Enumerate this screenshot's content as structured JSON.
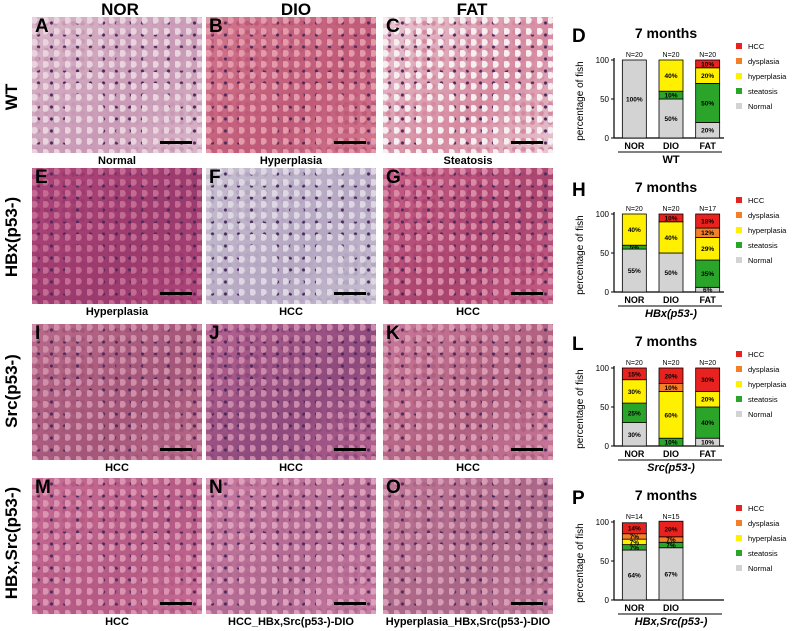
{
  "columns": [
    "NOR",
    "DIO",
    "FAT"
  ],
  "rows": [
    {
      "label": "WT"
    },
    {
      "label": "HBx(p53-)"
    },
    {
      "label": "Src(p53-)"
    },
    {
      "label": "HBx,Src(p53-)"
    }
  ],
  "panels": [
    {
      "letter": "A",
      "caption": "Normal"
    },
    {
      "letter": "B",
      "caption": "Hyperplasia"
    },
    {
      "letter": "C",
      "caption": "Steatosis"
    },
    {
      "letter": "E",
      "caption": "Hyperplasia"
    },
    {
      "letter": "F",
      "caption": "HCC"
    },
    {
      "letter": "G",
      "caption": "HCC"
    },
    {
      "letter": "I",
      "caption": "HCC"
    },
    {
      "letter": "J",
      "caption": "HCC"
    },
    {
      "letter": "K",
      "caption": "HCC"
    },
    {
      "letter": "M",
      "caption": "HCC"
    },
    {
      "letter": "N",
      "caption": "HCC_HBx,Src(p53-)-DIO"
    },
    {
      "letter": "O",
      "caption": "Hyperplasia_HBx,Src(p53-)-DIO"
    }
  ],
  "colors": {
    "HCC": "#e8221e",
    "dysplasia": "#f57f26",
    "hyperplasia": "#fff000",
    "steatosis": "#2aa52a",
    "Normal": "#d3d3d3"
  },
  "chart_data": [
    {
      "letter": "D",
      "type": "bar",
      "stacked": true,
      "title": "7 months",
      "ylabel": "percentage of fish",
      "xlabel": "WT",
      "xlabel_italic": false,
      "categories": [
        "NOR",
        "DIO",
        "FAT"
      ],
      "n_labels": [
        "N=20",
        "N=20",
        "N=20"
      ],
      "ylim": [
        0,
        100
      ],
      "yticks": [
        0,
        50,
        100
      ],
      "legend": [
        "HCC",
        "dysplasia",
        "hyperplasia",
        "steatosis",
        "Normal"
      ],
      "series": [
        {
          "name": "Normal",
          "values": [
            100,
            50,
            20
          ],
          "labels": [
            "100%",
            "50%",
            "20%"
          ]
        },
        {
          "name": "steatosis",
          "values": [
            0,
            10,
            50
          ],
          "labels": [
            "",
            "10%",
            "50%"
          ]
        },
        {
          "name": "hyperplasia",
          "values": [
            0,
            40,
            20
          ],
          "labels": [
            "",
            "40%",
            "20%"
          ]
        },
        {
          "name": "dysplasia",
          "values": [
            0,
            0,
            0
          ],
          "labels": [
            "",
            "",
            ""
          ]
        },
        {
          "name": "HCC",
          "values": [
            0,
            0,
            10
          ],
          "labels": [
            "",
            "",
            "10%"
          ]
        }
      ]
    },
    {
      "letter": "H",
      "type": "bar",
      "stacked": true,
      "title": "7 months",
      "ylabel": "percentage of fish",
      "xlabel": "HBx(p53-)",
      "xlabel_italic": true,
      "categories": [
        "NOR",
        "DIO",
        "FAT"
      ],
      "n_labels": [
        "N=20",
        "N=20",
        "N=17"
      ],
      "ylim": [
        0,
        100
      ],
      "yticks": [
        0,
        50,
        100
      ],
      "legend": [
        "HCC",
        "dysplasia",
        "hyperplasia",
        "steatosis",
        "Normal"
      ],
      "series": [
        {
          "name": "Normal",
          "values": [
            55,
            50,
            6
          ],
          "labels": [
            "55%",
            "50%",
            "6%"
          ]
        },
        {
          "name": "steatosis",
          "values": [
            5,
            0,
            35
          ],
          "labels": [
            "5%",
            "",
            "35%"
          ]
        },
        {
          "name": "hyperplasia",
          "values": [
            40,
            40,
            29
          ],
          "labels": [
            "40%",
            "40%",
            "29%"
          ]
        },
        {
          "name": "dysplasia",
          "values": [
            0,
            0,
            12
          ],
          "labels": [
            "",
            "",
            "12%"
          ]
        },
        {
          "name": "HCC",
          "values": [
            0,
            10,
            18
          ],
          "labels": [
            "",
            "10%",
            "18%"
          ]
        }
      ]
    },
    {
      "letter": "L",
      "type": "bar",
      "stacked": true,
      "title": "7 months",
      "ylabel": "percentage of fish",
      "xlabel": "Src(p53-)",
      "xlabel_italic": true,
      "categories": [
        "NOR",
        "DIO",
        "FAT"
      ],
      "n_labels": [
        "N=20",
        "N=20",
        "N=20"
      ],
      "ylim": [
        0,
        100
      ],
      "yticks": [
        0,
        50,
        100
      ],
      "legend": [
        "HCC",
        "dysplasia",
        "hyperplasia",
        "steatosis",
        "Normal"
      ],
      "series": [
        {
          "name": "Normal",
          "values": [
            30,
            0,
            10
          ],
          "labels": [
            "30%",
            "",
            "10%"
          ]
        },
        {
          "name": "steatosis",
          "values": [
            25,
            10,
            40
          ],
          "labels": [
            "25%",
            "10%",
            "40%"
          ]
        },
        {
          "name": "hyperplasia",
          "values": [
            30,
            60,
            20
          ],
          "labels": [
            "30%",
            "60%",
            "20%"
          ]
        },
        {
          "name": "dysplasia",
          "values": [
            0,
            10,
            0
          ],
          "labels": [
            "",
            "10%",
            ""
          ]
        },
        {
          "name": "HCC",
          "values": [
            15,
            20,
            30
          ],
          "labels": [
            "15%",
            "20%",
            "30%"
          ]
        }
      ]
    },
    {
      "letter": "P",
      "type": "bar",
      "stacked": true,
      "title": "7 months",
      "ylabel": "percentage of fish",
      "xlabel": "HBx,Src(p53-)",
      "xlabel_italic": true,
      "categories": [
        "NOR",
        "DIO"
      ],
      "n_labels": [
        "N=14",
        "N=15"
      ],
      "ylim": [
        0,
        100
      ],
      "yticks": [
        0,
        50,
        100
      ],
      "legend": [
        "HCC",
        "dysplasia",
        "hyperplasia",
        "steatosis",
        "Normal"
      ],
      "series": [
        {
          "name": "Normal",
          "values": [
            64,
            67
          ],
          "labels": [
            "64%",
            "67%"
          ]
        },
        {
          "name": "steatosis",
          "values": [
            7,
            7
          ],
          "labels": [
            "7%",
            "7%"
          ]
        },
        {
          "name": "hyperplasia",
          "values": [
            7,
            0
          ],
          "labels": [
            "7%",
            ""
          ]
        },
        {
          "name": "dysplasia",
          "values": [
            7,
            7
          ],
          "labels": [
            "7%",
            "7%"
          ]
        },
        {
          "name": "HCC",
          "values": [
            14,
            20
          ],
          "labels": [
            "14%",
            "20%"
          ]
        }
      ]
    }
  ]
}
